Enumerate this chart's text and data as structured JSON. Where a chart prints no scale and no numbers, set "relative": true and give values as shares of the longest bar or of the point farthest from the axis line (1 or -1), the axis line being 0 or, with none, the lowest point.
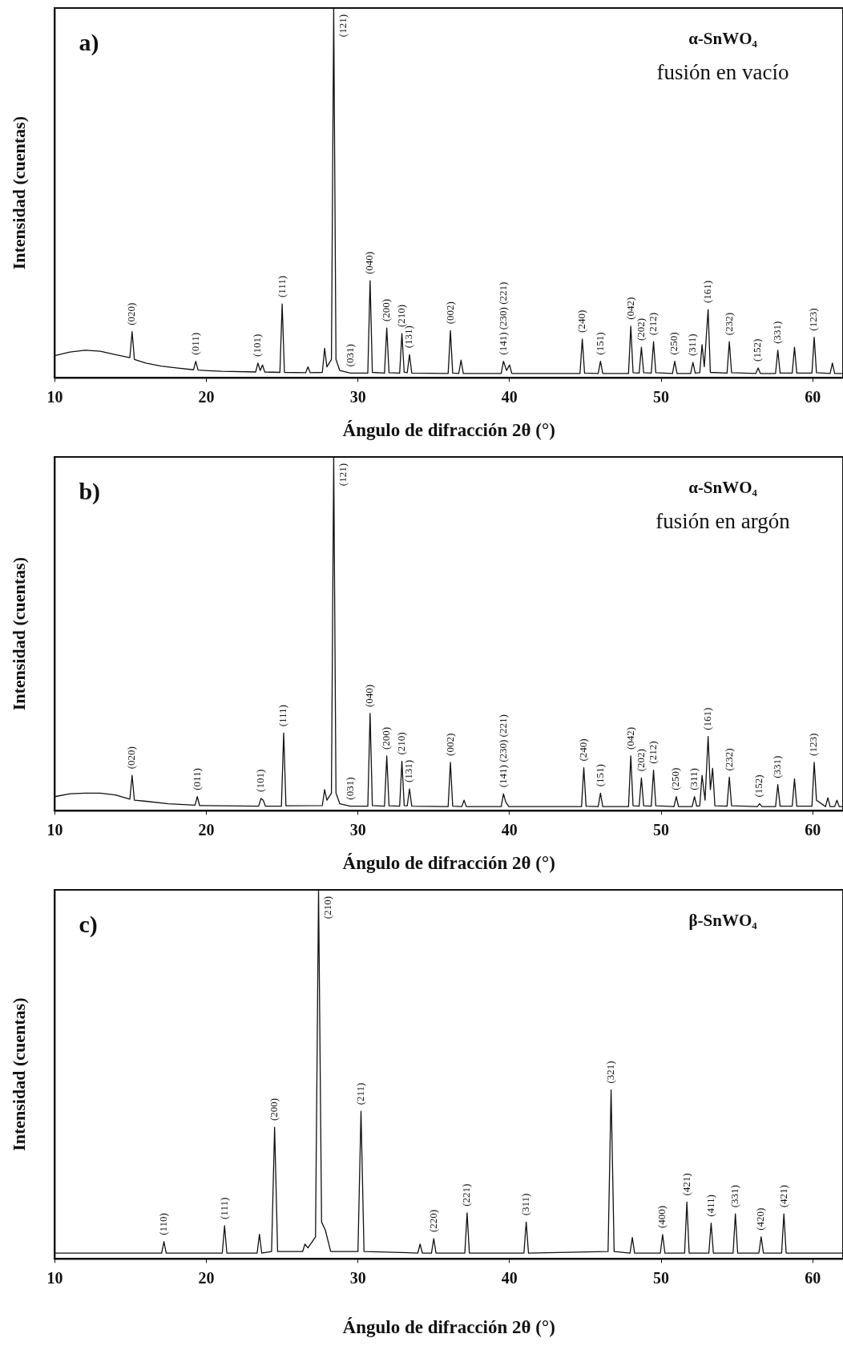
{
  "chart_data": [
    {
      "type": "line",
      "title": "a)",
      "subtitle": "α-SnWO₄",
      "xlabel": "Ángulo de difracción 2θ (°)",
      "ylabel": "Intensidad (cuentas)",
      "relative": true,
      "xlim": [
        10,
        62
      ],
      "xticks": [
        10,
        20,
        30,
        40,
        50,
        60
      ],
      "color": "#111111",
      "x": [
        10,
        11,
        12,
        13,
        14,
        14.95,
        15.1,
        15.25,
        16,
        17,
        18,
        19.15,
        19.3,
        19.45,
        21,
        23.25,
        23.4,
        23.55,
        23.7,
        23.85,
        24.85,
        25.0,
        25.15,
        26.55,
        26.7,
        26.85,
        27.65,
        27.8,
        27.95,
        28.25,
        28.4,
        28.55,
        28.8,
        29.5,
        30.65,
        30.8,
        30.95,
        31.75,
        31.9,
        32.05,
        32.75,
        32.9,
        33.05,
        33.25,
        33.4,
        33.55,
        35.95,
        36.1,
        36.25,
        36.65,
        36.8,
        36.95,
        39.45,
        39.6,
        39.8,
        40.0,
        40.15,
        44.65,
        44.8,
        44.95,
        45.85,
        46.0,
        46.15,
        47.85,
        48.0,
        48.15,
        48.55,
        48.7,
        48.85,
        49.35,
        49.5,
        49.65,
        50.75,
        50.9,
        51.05,
        51.95,
        52.1,
        52.25,
        52.55,
        52.7,
        52.85,
        53.1,
        53.25,
        54.35,
        54.5,
        54.65,
        56.25,
        56.4,
        56.55,
        57.55,
        57.7,
        57.85,
        58.65,
        58.8,
        58.95,
        59.95,
        60.1,
        60.25,
        61.15,
        61.3,
        61.45,
        62
      ],
      "values": [
        0.06,
        0.07,
        0.075,
        0.072,
        0.063,
        0.055,
        0.125,
        0.05,
        0.04,
        0.032,
        0.027,
        0.022,
        0.045,
        0.021,
        0.018,
        0.016,
        0.04,
        0.02,
        0.035,
        0.016,
        0.015,
        0.2,
        0.015,
        0.014,
        0.03,
        0.014,
        0.015,
        0.08,
        0.03,
        0.05,
        1,
        0.05,
        0.02,
        0.013,
        0.013,
        0.263,
        0.015,
        0.013,
        0.135,
        0.014,
        0.013,
        0.12,
        0.015,
        0.014,
        0.063,
        0.013,
        0.012,
        0.128,
        0.013,
        0.012,
        0.048,
        0.012,
        0.012,
        0.045,
        0.02,
        0.035,
        0.012,
        0.012,
        0.105,
        0.013,
        0.012,
        0.045,
        0.012,
        0.012,
        0.14,
        0.014,
        0.013,
        0.083,
        0.014,
        0.013,
        0.098,
        0.014,
        0.012,
        0.045,
        0.012,
        0.012,
        0.042,
        0.013,
        0.014,
        0.09,
        0.03,
        0.185,
        0.015,
        0.013,
        0.098,
        0.014,
        0.012,
        0.027,
        0.012,
        0.012,
        0.075,
        0.013,
        0.013,
        0.083,
        0.013,
        0.013,
        0.11,
        0.014,
        0.012,
        0.04,
        0.012,
        0.012
      ],
      "annotations": [
        "fusión en vacío",
        {
          "text": "(020)",
          "x": 15.1,
          "y": 0.125
        },
        {
          "text": "(011)",
          "x": 19.3,
          "y": 0.045
        },
        {
          "text": "(101)",
          "x": 23.4,
          "y": 0.04
        },
        {
          "text": "(111)",
          "x": 25.0,
          "y": 0.2
        },
        {
          "text": "(121)",
          "x": 28.4,
          "y": 1
        },
        {
          "text": "(031)",
          "x": 29.5,
          "y": 0.013
        },
        {
          "text": "(040)",
          "x": 30.8,
          "y": 0.263
        },
        {
          "text": "(200)",
          "x": 31.9,
          "y": 0.135
        },
        {
          "text": "(210)",
          "x": 32.9,
          "y": 0.12
        },
        {
          "text": "(131)",
          "x": 33.4,
          "y": 0.063
        },
        {
          "text": "(002)",
          "x": 36.1,
          "y": 0.128
        },
        {
          "text": "(141) (230) (221)",
          "x": 39.6,
          "y": 0.045
        },
        {
          "text": "(240)",
          "x": 44.8,
          "y": 0.105
        },
        {
          "text": "(151)",
          "x": 46.0,
          "y": 0.045
        },
        {
          "text": "(042)",
          "x": 48.0,
          "y": 0.14
        },
        {
          "text": "(202)",
          "x": 48.7,
          "y": 0.083
        },
        {
          "text": "(212)",
          "x": 49.5,
          "y": 0.098
        },
        {
          "text": "(250)",
          "x": 50.9,
          "y": 0.045
        },
        {
          "text": "(311)",
          "x": 52.1,
          "y": 0.042
        },
        {
          "text": "(161)",
          "x": 53.1,
          "y": 0.185
        },
        {
          "text": "(232)",
          "x": 54.5,
          "y": 0.098
        },
        {
          "text": "(152)",
          "x": 56.4,
          "y": 0.027
        },
        {
          "text": "(331)",
          "x": 57.7,
          "y": 0.075
        },
        {
          "text": "(123)",
          "x": 60.1,
          "y": 0.11
        }
      ]
    },
    {
      "type": "line",
      "title": "b)",
      "subtitle": "α-SnWO₄",
      "xlabel": "Ángulo de difracción 2θ (°)",
      "ylabel": "Intensidad (cuentas)",
      "relative": true,
      "xlim": [
        10,
        62
      ],
      "xticks": [
        10,
        20,
        30,
        40,
        50,
        60
      ],
      "color": "#111111",
      "x": [
        10,
        11,
        12,
        13,
        14,
        14.95,
        15.1,
        15.25,
        16,
        17.5,
        19.25,
        19.4,
        19.55,
        21,
        23.45,
        23.6,
        23.75,
        23.9,
        24.95,
        25.1,
        25.25,
        27.65,
        27.8,
        27.95,
        28.25,
        28.4,
        28.55,
        28.8,
        29.5,
        30.65,
        30.8,
        30.95,
        31.75,
        31.9,
        32.05,
        32.75,
        32.9,
        33.05,
        33.25,
        33.4,
        33.55,
        35.95,
        36.1,
        36.25,
        36.85,
        37.0,
        37.15,
        39.45,
        39.6,
        39.75,
        39.95,
        44.75,
        44.9,
        45.05,
        45.85,
        46.0,
        46.15,
        47.85,
        48.0,
        48.15,
        48.55,
        48.7,
        48.85,
        49.35,
        49.5,
        49.65,
        50.85,
        51.0,
        51.15,
        52.05,
        52.2,
        52.35,
        52.55,
        52.7,
        52.9,
        53.1,
        53.25,
        53.4,
        53.55,
        54.35,
        54.5,
        54.65,
        56.35,
        56.5,
        56.65,
        57.55,
        57.7,
        57.85,
        58.65,
        58.8,
        58.95,
        59.95,
        60.1,
        60.25,
        60.85,
        61.0,
        61.15,
        61.45,
        61.6,
        61.75,
        62
      ],
      "values": [
        0.04,
        0.048,
        0.05,
        0.05,
        0.045,
        0.033,
        0.1,
        0.03,
        0.027,
        0.02,
        0.016,
        0.04,
        0.015,
        0.014,
        0.013,
        0.035,
        0.03,
        0.013,
        0.013,
        0.22,
        0.014,
        0.015,
        0.06,
        0.03,
        0.05,
        1,
        0.05,
        0.02,
        0.013,
        0.013,
        0.275,
        0.015,
        0.013,
        0.155,
        0.014,
        0.013,
        0.14,
        0.015,
        0.014,
        0.062,
        0.013,
        0.012,
        0.137,
        0.013,
        0.012,
        0.03,
        0.012,
        0.012,
        0.048,
        0.025,
        0.012,
        0.012,
        0.122,
        0.013,
        0.012,
        0.05,
        0.012,
        0.012,
        0.155,
        0.014,
        0.013,
        0.093,
        0.014,
        0.013,
        0.115,
        0.014,
        0.012,
        0.04,
        0.012,
        0.012,
        0.04,
        0.013,
        0.014,
        0.1,
        0.03,
        0.21,
        0.06,
        0.12,
        0.014,
        0.013,
        0.095,
        0.014,
        0.012,
        0.02,
        0.012,
        0.012,
        0.074,
        0.013,
        0.013,
        0.09,
        0.013,
        0.013,
        0.137,
        0.03,
        0.012,
        0.037,
        0.012,
        0.012,
        0.03,
        0.012,
        0.012
      ],
      "annotations": [
        "fusión en argón",
        {
          "text": "(020)",
          "x": 15.1,
          "y": 0.1
        },
        {
          "text": "(011)",
          "x": 19.4,
          "y": 0.04
        },
        {
          "text": "(101)",
          "x": 23.6,
          "y": 0.035
        },
        {
          "text": "(111)",
          "x": 25.1,
          "y": 0.22
        },
        {
          "text": "(121)",
          "x": 28.4,
          "y": 1
        },
        {
          "text": "(031)",
          "x": 29.5,
          "y": 0.013
        },
        {
          "text": "(040)",
          "x": 30.8,
          "y": 0.275
        },
        {
          "text": "(200)",
          "x": 31.9,
          "y": 0.155
        },
        {
          "text": "(210)",
          "x": 32.9,
          "y": 0.14
        },
        {
          "text": "(131)",
          "x": 33.4,
          "y": 0.062
        },
        {
          "text": "(002)",
          "x": 36.1,
          "y": 0.137
        },
        {
          "text": "(141) (230) (221)",
          "x": 39.6,
          "y": 0.048
        },
        {
          "text": "(240)",
          "x": 44.9,
          "y": 0.122
        },
        {
          "text": "(151)",
          "x": 46.0,
          "y": 0.05
        },
        {
          "text": "(042)",
          "x": 48.0,
          "y": 0.155
        },
        {
          "text": "(202)",
          "x": 48.7,
          "y": 0.093
        },
        {
          "text": "(212)",
          "x": 49.5,
          "y": 0.115
        },
        {
          "text": "(250)",
          "x": 51.0,
          "y": 0.04
        },
        {
          "text": "(311)",
          "x": 52.2,
          "y": 0.04
        },
        {
          "text": "(161)",
          "x": 53.1,
          "y": 0.21
        },
        {
          "text": "(232)",
          "x": 54.5,
          "y": 0.095
        },
        {
          "text": "(152)",
          "x": 56.5,
          "y": 0.02
        },
        {
          "text": "(331)",
          "x": 57.7,
          "y": 0.074
        },
        {
          "text": "(123)",
          "x": 60.1,
          "y": 0.137
        }
      ]
    },
    {
      "type": "line",
      "title": "c)",
      "subtitle": "β-SnWO₄",
      "xlabel": "Ángulo de difracción 2θ (°)",
      "ylabel": "Intensidad (cuentas)",
      "relative": true,
      "xlim": [
        10,
        62
      ],
      "xticks": [
        10,
        20,
        30,
        40,
        50,
        60
      ],
      "color": "#111111",
      "x": [
        10,
        15,
        17.05,
        17.2,
        17.35,
        21.05,
        21.2,
        21.35,
        23.35,
        23.5,
        23.65,
        24.3,
        24.5,
        24.7,
        26.35,
        26.5,
        26.7,
        27.2,
        27.4,
        27.6,
        27.85,
        28.2,
        30.0,
        30.2,
        30.4,
        33.95,
        34.1,
        34.25,
        34.85,
        35.0,
        35.15,
        37.05,
        37.2,
        37.35,
        40.95,
        41.1,
        41.25,
        46.5,
        46.7,
        46.9,
        47.95,
        48.1,
        48.25,
        49.95,
        50.1,
        50.25,
        51.55,
        51.7,
        51.85,
        53.15,
        53.3,
        53.45,
        54.75,
        54.9,
        55.05,
        56.45,
        56.6,
        56.75,
        57.95,
        58.1,
        58.25,
        62
      ],
      "values": [
        0.016,
        0.016,
        0.016,
        0.047,
        0.016,
        0.016,
        0.09,
        0.016,
        0.016,
        0.067,
        0.016,
        0.02,
        0.357,
        0.02,
        0.02,
        0.04,
        0.03,
        0.06,
        1,
        0.1,
        0.078,
        0.02,
        0.02,
        0.4,
        0.02,
        0.016,
        0.04,
        0.016,
        0.016,
        0.055,
        0.016,
        0.016,
        0.125,
        0.016,
        0.016,
        0.1,
        0.016,
        0.02,
        0.458,
        0.02,
        0.016,
        0.058,
        0.016,
        0.016,
        0.066,
        0.016,
        0.016,
        0.154,
        0.016,
        0.016,
        0.097,
        0.016,
        0.016,
        0.122,
        0.016,
        0.016,
        0.06,
        0.016,
        0.016,
        0.122,
        0.016,
        0.016
      ],
      "annotations": [
        {
          "text": "(110)",
          "x": 17.2,
          "y": 0.047
        },
        {
          "text": "(111)",
          "x": 21.2,
          "y": 0.09
        },
        {
          "text": "(200)",
          "x": 24.5,
          "y": 0.357
        },
        {
          "text": "(210)",
          "x": 27.4,
          "y": 1
        },
        {
          "text": "(211)",
          "x": 30.2,
          "y": 0.4
        },
        {
          "text": "(220)",
          "x": 35.0,
          "y": 0.055
        },
        {
          "text": "(221)",
          "x": 37.2,
          "y": 0.125
        },
        {
          "text": "(311)",
          "x": 41.1,
          "y": 0.1
        },
        {
          "text": "(321)",
          "x": 46.7,
          "y": 0.458
        },
        {
          "text": "(400)",
          "x": 50.1,
          "y": 0.066
        },
        {
          "text": "(421)",
          "x": 51.7,
          "y": 0.154
        },
        {
          "text": "(411)",
          "x": 53.3,
          "y": 0.097
        },
        {
          "text": "(331)",
          "x": 54.9,
          "y": 0.122
        },
        {
          "text": "(420)",
          "x": 56.6,
          "y": 0.06
        },
        {
          "text": "(421)",
          "x": 58.1,
          "y": 0.122
        }
      ]
    }
  ]
}
